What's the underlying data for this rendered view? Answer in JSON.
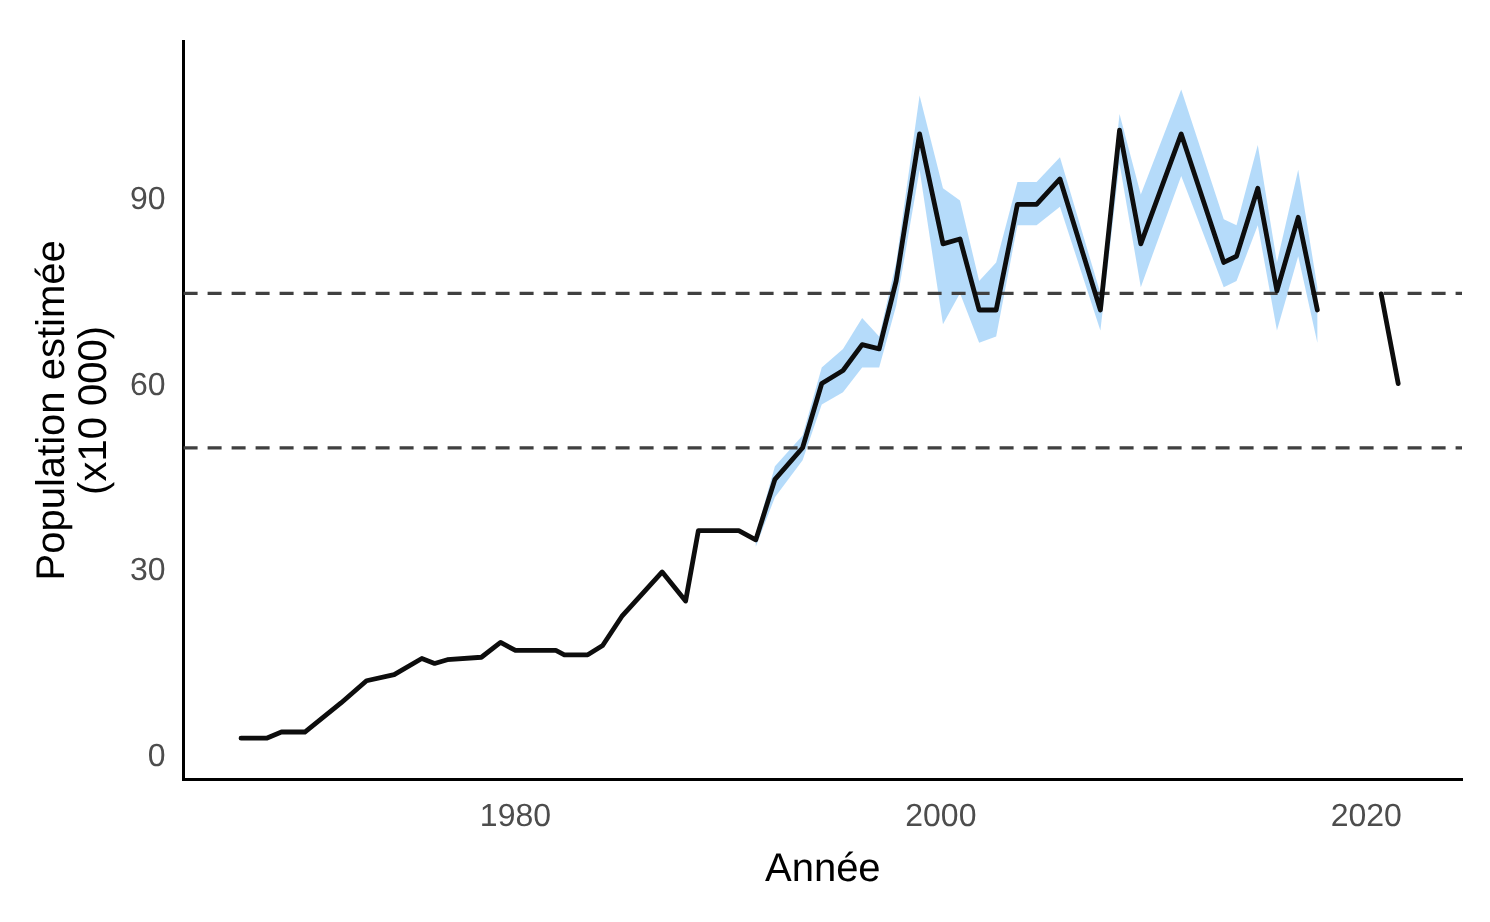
{
  "chart_data": {
    "type": "line",
    "xlabel": "Année",
    "ylabel": "Population estimée\n(x10 000)",
    "x": [
      1967.1,
      1968.3,
      1969.0,
      1970.1,
      1971.8,
      1973.0,
      1974.3,
      1975.6,
      1976.2,
      1976.8,
      1978.4,
      1979.3,
      1980.0,
      1981.9,
      1982.3,
      1983.4,
      1984.1,
      1985.0,
      1986.9,
      1988.0,
      1988.6,
      1990.5,
      1991.3,
      1992.2,
      1993.5,
      1994.4,
      1995.4,
      1996.3,
      1997.1,
      1997.9,
      1999.0,
      2000.1,
      2000.9,
      2001.8,
      2002.6,
      2003.6,
      2004.5,
      2005.6,
      2007.5,
      2008.4,
      2009.4,
      2011.3,
      2013.3,
      2013.9,
      2014.9,
      2015.8,
      2016.8,
      2017.7,
      2019.0,
      2020.7,
      2021.5
    ],
    "series": [
      {
        "color": "#0d0d0d",
        "values": [
          3.0,
          3.0,
          4.0,
          4.0,
          8.7,
          12.3,
          13.3,
          15.9,
          15.1,
          15.7,
          16.1,
          18.5,
          17.2,
          17.2,
          16.5,
          16.5,
          18,
          22.7,
          29.9,
          25.2,
          36.6,
          36.6,
          35.1,
          44.9,
          50,
          60.4,
          62.5,
          66.7,
          66,
          77,
          100.8,
          83,
          83.8,
          72.3,
          72.3,
          89.4,
          89.4,
          93.5,
          72.3,
          101.4,
          83,
          100.8,
          80,
          81,
          92,
          75.4,
          87.3,
          72.3,
          null,
          74.9,
          60.4
        ],
        "lower": [
          null,
          null,
          null,
          null,
          null,
          null,
          null,
          null,
          null,
          null,
          null,
          null,
          null,
          null,
          null,
          null,
          null,
          null,
          null,
          null,
          null,
          null,
          34,
          42,
          48,
          57,
          59,
          63,
          63,
          73,
          95,
          70,
          75,
          67,
          68,
          86,
          86,
          89,
          69,
          96,
          76,
          94,
          76,
          77,
          86,
          69,
          81,
          67,
          null,
          null,
          null
        ],
        "upper": [
          null,
          null,
          null,
          null,
          null,
          null,
          null,
          null,
          null,
          null,
          null,
          null,
          null,
          null,
          null,
          null,
          null,
          null,
          null,
          null,
          null,
          null,
          36,
          47,
          52,
          63,
          66,
          71,
          68,
          80,
          107,
          92,
          90,
          77,
          80,
          93,
          93,
          97,
          75,
          104,
          91,
          108,
          87,
          86,
          99,
          80,
          95,
          76,
          null,
          null,
          null
        ]
      }
    ],
    "xlim": [
      1964.4,
      2024.5
    ],
    "xticks": [
      1980,
      2000,
      2020
    ],
    "ylim": [
      -3.7,
      115.8
    ],
    "yticks": [
      0,
      30,
      60,
      90
    ],
    "ref_lines": [
      {
        "axis": "y",
        "value": 75,
        "color": "#404040",
        "line_style": "dashed"
      },
      {
        "axis": "y",
        "value": 50,
        "color": "#404040",
        "line_style": "dashed"
      }
    ],
    "grid": false,
    "legend": false,
    "marker": "none",
    "line_style": "solid"
  }
}
